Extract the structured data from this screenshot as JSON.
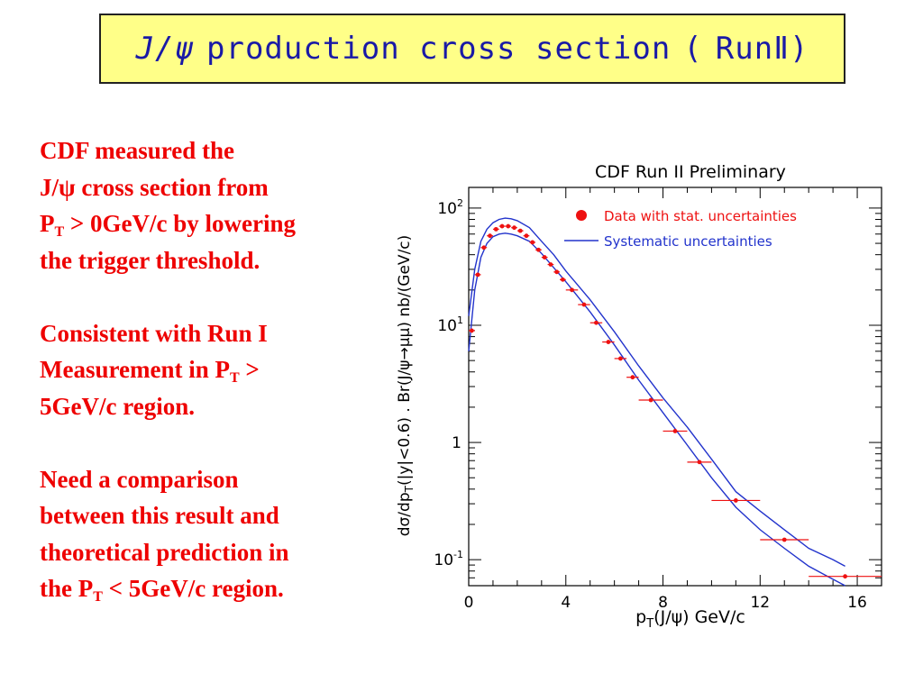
{
  "title": {
    "part1": "J/",
    "psi": "ψ",
    "part2": "production cross section",
    "paren_open": "(",
    "run": "Run",
    "roman": "Ⅱ",
    "paren_close": ")"
  },
  "notes": {
    "p1_a": "CDF measured the",
    "p1_b": "J/ψ cross section from",
    "p1_c": "P",
    "p1_sub": "T",
    "p1_d": " > 0GeV/c by lowering",
    "p1_e": "the trigger threshold.",
    "p2_a": "Consistent with Run I",
    "p2_b": "Measurement in P",
    "p2_sub": "T",
    "p2_c": " >",
    "p2_d": "5GeV/c region.",
    "p3_a": "Need a comparison",
    "p3_b": "between this result and",
    "p3_c": "theoretical prediction in",
    "p3_d": "the P",
    "p3_sub": "T",
    "p3_e": " < 5GeV/c region."
  },
  "colors": {
    "title_bg": "#ffff88",
    "title_text": "#1a1aa6",
    "notes_text": "#ee0000",
    "data": "#ee1111",
    "band": "#2233cc"
  },
  "chart_data": {
    "type": "scatter",
    "title": "CDF Run II Preliminary",
    "xlabel": "p_T(J/ψ) GeV/c",
    "ylabel": "dσ/dp_T(|y|<0.6) . Br(J/ψ→μμ) nb/(GeV/c)",
    "xlim": [
      0,
      17
    ],
    "ylim": [
      0.06,
      150
    ],
    "yscale": "log",
    "x_ticks": [
      0,
      4,
      8,
      12,
      16
    ],
    "y_ticks": [
      0.1,
      1,
      10,
      100
    ],
    "y_tick_labels": [
      {
        "base": "10",
        "exp": "-1"
      },
      {
        "base": "1",
        "exp": ""
      },
      {
        "base": "10",
        "exp": "1"
      },
      {
        "base": "10",
        "exp": "2"
      }
    ],
    "legend": {
      "placement": "top-right",
      "data_label": "Data with stat. uncertainties",
      "band_label": "Systematic uncertainties"
    },
    "points": [
      {
        "x": 0.125,
        "y": 9.0,
        "xerr": 0.125
      },
      {
        "x": 0.375,
        "y": 27.0,
        "xerr": 0.125
      },
      {
        "x": 0.625,
        "y": 46.0,
        "xerr": 0.125
      },
      {
        "x": 0.875,
        "y": 58.0,
        "xerr": 0.125
      },
      {
        "x": 1.125,
        "y": 66.0,
        "xerr": 0.125
      },
      {
        "x": 1.375,
        "y": 70.0,
        "xerr": 0.125
      },
      {
        "x": 1.625,
        "y": 70.0,
        "xerr": 0.125
      },
      {
        "x": 1.875,
        "y": 68.0,
        "xerr": 0.125
      },
      {
        "x": 2.125,
        "y": 64.0,
        "xerr": 0.125
      },
      {
        "x": 2.375,
        "y": 58.0,
        "xerr": 0.125
      },
      {
        "x": 2.625,
        "y": 51.0,
        "xerr": 0.125
      },
      {
        "x": 2.875,
        "y": 44.0,
        "xerr": 0.125
      },
      {
        "x": 3.125,
        "y": 38.0,
        "xerr": 0.125
      },
      {
        "x": 3.375,
        "y": 33.0,
        "xerr": 0.125
      },
      {
        "x": 3.625,
        "y": 28.5,
        "xerr": 0.125
      },
      {
        "x": 3.875,
        "y": 24.5,
        "xerr": 0.125
      },
      {
        "x": 4.25,
        "y": 20.0,
        "xerr": 0.25
      },
      {
        "x": 4.75,
        "y": 15.0,
        "xerr": 0.25
      },
      {
        "x": 5.25,
        "y": 10.5,
        "xerr": 0.25
      },
      {
        "x": 5.75,
        "y": 7.2,
        "xerr": 0.25
      },
      {
        "x": 6.25,
        "y": 5.2,
        "xerr": 0.25
      },
      {
        "x": 6.75,
        "y": 3.6,
        "xerr": 0.25
      },
      {
        "x": 7.5,
        "y": 2.3,
        "xerr": 0.5
      },
      {
        "x": 8.5,
        "y": 1.25,
        "xerr": 0.5
      },
      {
        "x": 9.5,
        "y": 0.68,
        "xerr": 0.5
      },
      {
        "x": 11.0,
        "y": 0.32,
        "xerr": 1.0
      },
      {
        "x": 13.0,
        "y": 0.148,
        "xerr": 1.0
      },
      {
        "x": 15.5,
        "y": 0.072,
        "xerr": 1.5
      }
    ],
    "band_upper": [
      [
        0.0,
        12.0
      ],
      [
        0.25,
        30.0
      ],
      [
        0.5,
        52.0
      ],
      [
        0.75,
        66.0
      ],
      [
        1.0,
        75.0
      ],
      [
        1.25,
        80.0
      ],
      [
        1.5,
        82.0
      ],
      [
        1.75,
        81.0
      ],
      [
        2.0,
        78.0
      ],
      [
        2.5,
        68.0
      ],
      [
        3.0,
        52.0
      ],
      [
        3.5,
        40.0
      ],
      [
        4.0,
        29.0
      ],
      [
        5.0,
        16.5
      ],
      [
        6.0,
        8.8
      ],
      [
        7.0,
        4.5
      ],
      [
        8.0,
        2.4
      ],
      [
        9.0,
        1.35
      ],
      [
        10.0,
        0.72
      ],
      [
        11.0,
        0.38
      ],
      [
        12.0,
        0.26
      ],
      [
        13.0,
        0.18
      ],
      [
        14.0,
        0.125
      ],
      [
        15.0,
        0.1
      ],
      [
        15.5,
        0.088
      ]
    ],
    "band_lower": [
      [
        0.0,
        6.0
      ],
      [
        0.25,
        20.0
      ],
      [
        0.5,
        38.0
      ],
      [
        0.75,
        50.0
      ],
      [
        1.0,
        57.0
      ],
      [
        1.25,
        60.0
      ],
      [
        1.5,
        61.0
      ],
      [
        1.75,
        60.0
      ],
      [
        2.0,
        58.0
      ],
      [
        2.5,
        52.0
      ],
      [
        3.0,
        41.0
      ],
      [
        3.5,
        31.0
      ],
      [
        4.0,
        23.5
      ],
      [
        5.0,
        13.0
      ],
      [
        6.0,
        6.8
      ],
      [
        7.0,
        3.4
      ],
      [
        8.0,
        1.8
      ],
      [
        9.0,
        0.95
      ],
      [
        10.0,
        0.5
      ],
      [
        11.0,
        0.28
      ],
      [
        12.0,
        0.18
      ],
      [
        13.0,
        0.125
      ],
      [
        14.0,
        0.088
      ],
      [
        15.0,
        0.068
      ],
      [
        15.5,
        0.06
      ]
    ]
  }
}
